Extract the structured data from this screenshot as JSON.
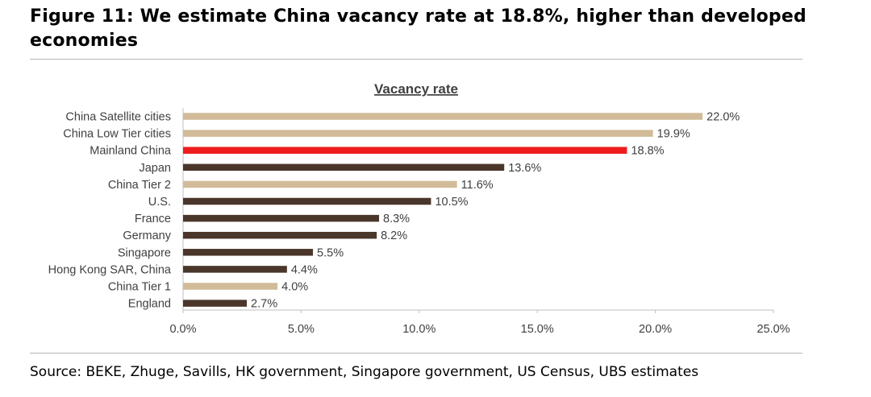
{
  "figure_title": "Figure 11: We estimate China vacancy rate at 18.8%, higher than developed economies",
  "source": "Source: BEKE, Zhuge, Savills, HK government, Singapore government, US Census, UBS estimates",
  "colors": {
    "china_bar": "#d2bb98",
    "highlight_bar": "#ee1c1c",
    "other_bar": "#4a362a",
    "rule": "#b5b5b5"
  },
  "chart_data": {
    "type": "bar",
    "orientation": "horizontal",
    "title": "Vacancy rate",
    "categories": [
      "China Satellite cities",
      "China Low Tier cities",
      "Mainland China",
      "Japan",
      "China Tier 2",
      "U.S.",
      "France",
      "Germany",
      "Singapore",
      "Hong Kong SAR, China",
      "China Tier 1",
      "England"
    ],
    "values": [
      22.0,
      19.9,
      18.8,
      13.6,
      11.6,
      10.5,
      8.3,
      8.2,
      5.5,
      4.4,
      4.0,
      2.7
    ],
    "data_labels": [
      "22.0%",
      "19.9%",
      "18.8%",
      "13.6%",
      "11.6%",
      "10.5%",
      "8.3%",
      "8.2%",
      "5.5%",
      "4.4%",
      "4.0%",
      "2.7%"
    ],
    "bar_groups": [
      "china",
      "china",
      "highlight",
      "other",
      "china",
      "other",
      "other",
      "other",
      "other",
      "other",
      "china",
      "other"
    ],
    "xlim": [
      0,
      25
    ],
    "x_ticks": [
      0,
      5,
      10,
      15,
      20,
      25
    ],
    "x_tick_labels": [
      "0.0%",
      "5.0%",
      "10.0%",
      "15.0%",
      "20.0%",
      "25.0%"
    ],
    "grid": false,
    "legend": "none"
  }
}
